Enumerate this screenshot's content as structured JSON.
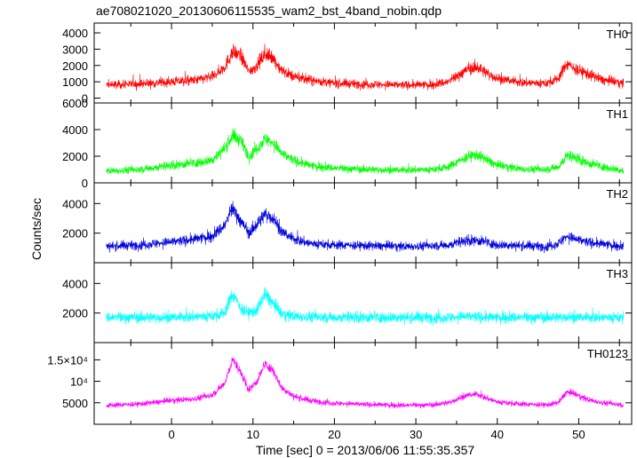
{
  "chart_data": {
    "type": "line",
    "title": "ae708021020_20130606115535_wam2_bst_4band_nobin.qdp",
    "xlabel": "Time [sec] 0 = 2013/06/06 11:55:35.357",
    "ylabel": "Counts/sec",
    "xlim": [
      -9.5,
      56.5
    ],
    "x_ticks": [
      0,
      10,
      20,
      30,
      40,
      50
    ],
    "x_tick_labels": [
      "0",
      "10",
      "20",
      "30",
      "40",
      "50"
    ],
    "grid": false,
    "panels": [
      {
        "name": "TH0",
        "color": "#ff0000",
        "ylim": [
          -300,
          4600
        ],
        "y_ticks": [
          0,
          1000,
          2000,
          3000,
          4000
        ],
        "y_tick_labels": [
          "0",
          "1000",
          "2000",
          "3000",
          "4000"
        ],
        "series": {
          "x": [
            -8,
            -4,
            0,
            3,
            5,
            6.5,
            7.5,
            8.5,
            9.5,
            10.5,
            11.5,
            12.5,
            13.5,
            15,
            17,
            20,
            24,
            28,
            32,
            34,
            35.5,
            36.5,
            37.5,
            38.5,
            40,
            43,
            46,
            47.5,
            48.5,
            49.5,
            51,
            53,
            55.5
          ],
          "y": [
            800,
            850,
            1000,
            1100,
            1300,
            1900,
            2800,
            2600,
            1600,
            2000,
            2700,
            2400,
            1700,
            1300,
            1100,
            900,
            850,
            800,
            820,
            1000,
            1500,
            1800,
            1900,
            1600,
            1200,
            950,
            900,
            1200,
            2100,
            1800,
            1500,
            1100,
            900
          ]
        }
      },
      {
        "name": "TH1",
        "color": "#00ff00",
        "ylim": [
          0,
          6000
        ],
        "y_ticks": [
          0,
          2000,
          4000,
          6000
        ],
        "y_tick_labels": [
          "0",
          "2000",
          "4000",
          "6000"
        ],
        "series": {
          "x": [
            -8,
            -4,
            0,
            3,
            5,
            6.5,
            7.5,
            8.5,
            9.5,
            10.5,
            11.5,
            12.5,
            13.5,
            15,
            17,
            20,
            24,
            28,
            32,
            34,
            35.5,
            36.5,
            37.5,
            38.5,
            40,
            43,
            46,
            47.5,
            48.5,
            49.5,
            51,
            53,
            55.5
          ],
          "y": [
            900,
            1000,
            1300,
            1500,
            1700,
            2600,
            3500,
            3200,
            2000,
            2600,
            3300,
            3000,
            2200,
            1700,
            1300,
            1100,
            1000,
            950,
            1000,
            1200,
            1700,
            2000,
            2100,
            1800,
            1300,
            1050,
            1000,
            1200,
            2000,
            1900,
            1500,
            1200,
            900
          ]
        }
      },
      {
        "name": "TH2",
        "color": "#0000dd",
        "ylim": [
          0,
          5400
        ],
        "y_ticks": [
          2000,
          4000
        ],
        "y_tick_labels": [
          "2000",
          "4000"
        ],
        "series": {
          "x": [
            -8,
            -4,
            0,
            3,
            5,
            6.5,
            7.5,
            8.5,
            9.5,
            10.5,
            11.5,
            12.5,
            13.5,
            15,
            17,
            20,
            24,
            28,
            32,
            34,
            35.5,
            36.5,
            37.5,
            38.5,
            40,
            43,
            46,
            47.5,
            48.5,
            49.5,
            51,
            53,
            55.5
          ],
          "y": [
            1100,
            1200,
            1400,
            1600,
            1800,
            2500,
            3700,
            2800,
            2000,
            2600,
            3300,
            3000,
            2100,
            1600,
            1300,
            1200,
            1150,
            1100,
            1150,
            1200,
            1400,
            1500,
            1500,
            1400,
            1200,
            1150,
            1100,
            1300,
            1800,
            1600,
            1400,
            1250,
            1100
          ]
        }
      },
      {
        "name": "TH3",
        "color": "#00ffff",
        "ylim": [
          0,
          5400
        ],
        "y_ticks": [
          2000,
          4000
        ],
        "y_tick_labels": [
          "2000",
          "4000"
        ],
        "series": {
          "x": [
            -8,
            -4,
            0,
            3,
            5,
            6.5,
            7.5,
            8.5,
            9.5,
            10.5,
            11.5,
            12.5,
            13.5,
            15,
            17,
            20,
            24,
            28,
            32,
            34,
            35.5,
            36.5,
            37.5,
            38.5,
            40,
            43,
            46,
            47.5,
            48.5,
            49.5,
            51,
            53,
            55.5
          ],
          "y": [
            1700,
            1700,
            1700,
            1750,
            1800,
            2000,
            3300,
            2300,
            2000,
            2200,
            3300,
            2600,
            1900,
            1800,
            1750,
            1700,
            1700,
            1700,
            1700,
            1700,
            1750,
            1750,
            1750,
            1700,
            1700,
            1700,
            1700,
            1700,
            1750,
            1700,
            1700,
            1700,
            1700
          ]
        }
      },
      {
        "name": "TH0123",
        "color": "#ff00ff",
        "ylim": [
          0,
          19000
        ],
        "y_ticks": [
          5000,
          10000,
          15000
        ],
        "y_tick_labels": [
          "5000",
          "10⁴",
          "1.5×10⁴"
        ],
        "series": {
          "x": [
            -8,
            -4,
            0,
            3,
            5,
            6.5,
            7.5,
            8.5,
            9.5,
            10.5,
            11.5,
            12.5,
            13.5,
            15,
            17,
            20,
            24,
            28,
            32,
            34,
            35.5,
            36.5,
            37.5,
            38.5,
            40,
            43,
            46,
            47.5,
            48.5,
            49.5,
            51,
            53,
            55.5
          ],
          "y": [
            4400,
            4700,
            5500,
            6000,
            6800,
            9500,
            15000,
            12000,
            8000,
            10000,
            14000,
            12500,
            8500,
            6500,
            5500,
            4900,
            4600,
            4400,
            4500,
            5000,
            6200,
            6800,
            7000,
            6200,
            5200,
            4700,
            4500,
            5000,
            7500,
            7000,
            5800,
            5000,
            4500
          ]
        }
      }
    ]
  }
}
